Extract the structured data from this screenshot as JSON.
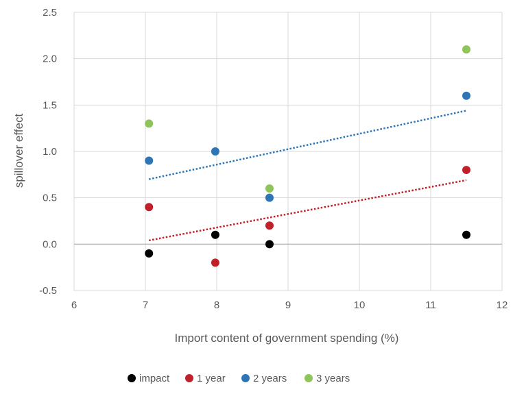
{
  "chart_data": {
    "type": "scatter",
    "title": "",
    "xlabel": "Import content of government spending (%)",
    "ylabel": "spillover effect",
    "xlim": [
      6,
      12
    ],
    "ylim": [
      -0.5,
      2.5
    ],
    "x_ticks": [
      "6",
      "7",
      "8",
      "9",
      "10",
      "11",
      "12"
    ],
    "y_ticks": [
      "-0.5",
      "0.0",
      "0.5",
      "1.0",
      "1.5",
      "2.0",
      "2.5"
    ],
    "grid": true,
    "legend_position": "bottom",
    "series": [
      {
        "name": "impact",
        "color": "#000000",
        "points": [
          [
            7.05,
            -0.1
          ],
          [
            7.98,
            0.1
          ],
          [
            8.74,
            0.0
          ],
          [
            11.5,
            0.1
          ]
        ]
      },
      {
        "name": "1 year",
        "color": "#c0202a",
        "points": [
          [
            7.05,
            0.4
          ],
          [
            7.98,
            -0.2
          ],
          [
            8.74,
            0.2
          ],
          [
            11.5,
            0.8
          ]
        ]
      },
      {
        "name": "2 years",
        "color": "#2e75b6",
        "points": [
          [
            7.05,
            0.9
          ],
          [
            7.98,
            1.0
          ],
          [
            8.74,
            0.5
          ],
          [
            11.5,
            1.6
          ]
        ]
      },
      {
        "name": "3 years",
        "color": "#8fc45b",
        "points": [
          [
            7.05,
            1.3
          ],
          [
            8.74,
            0.6
          ],
          [
            11.5,
            2.1
          ]
        ]
      }
    ],
    "trendlines": [
      {
        "series": "1 year",
        "color": "#c0202a",
        "x": [
          7.05,
          11.5
        ],
        "y": [
          0.04,
          0.69
        ]
      },
      {
        "series": "2 years",
        "color": "#2e75b6",
        "x": [
          7.05,
          11.5
        ],
        "y": [
          0.7,
          1.44
        ]
      }
    ]
  }
}
